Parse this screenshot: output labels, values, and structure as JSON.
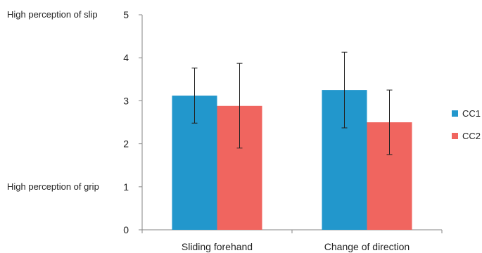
{
  "chart_data": {
    "type": "bar",
    "categories": [
      "Sliding forehand",
      "Change of direction"
    ],
    "series": [
      {
        "name": "CC1",
        "color": "#2297CC",
        "values": [
          3.12,
          3.25
        ],
        "error_low": [
          2.48,
          2.37
        ],
        "error_high": [
          3.76,
          4.13
        ]
      },
      {
        "name": "CC2",
        "color": "#F0655F",
        "values": [
          2.88,
          2.5
        ],
        "error_low": [
          1.9,
          1.75
        ],
        "error_high": [
          3.87,
          3.25
        ]
      }
    ],
    "ylim": [
      0,
      5
    ],
    "yticks": [
      0,
      1,
      2,
      3,
      4,
      5
    ],
    "y_side_labels": [
      {
        "value": 5,
        "text": "High perception of slip"
      },
      {
        "value": 1,
        "text": "High perception of grip"
      }
    ],
    "grid": false,
    "legend_position": "right"
  }
}
